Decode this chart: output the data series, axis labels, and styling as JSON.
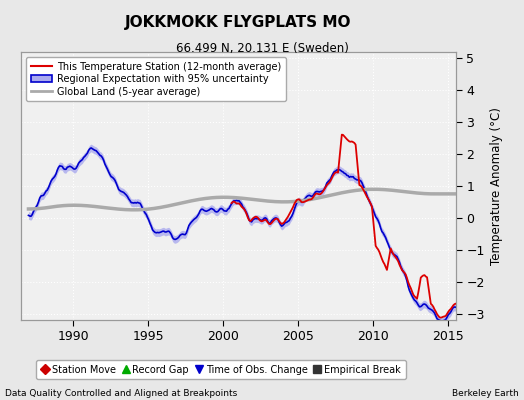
{
  "title": "JOKKMOKK FLYGPLATS MO",
  "subtitle": "66.499 N, 20.131 E (Sweden)",
  "xlabel_left": "Data Quality Controlled and Aligned at Breakpoints",
  "xlabel_right": "Berkeley Earth",
  "ylabel": "Temperature Anomaly (°C)",
  "xlim": [
    1986.5,
    2015.5
  ],
  "ylim": [
    -3.2,
    5.2
  ],
  "yticks": [
    -3,
    -2,
    -1,
    0,
    1,
    2,
    3,
    4,
    5
  ],
  "xticks": [
    1990,
    1995,
    2000,
    2005,
    2010,
    2015
  ],
  "bg_color": "#e8e8e8",
  "plot_bg_color": "#f0f0f0",
  "grid_color": "#ffffff",
  "red_color": "#dd0000",
  "blue_color": "#0000cc",
  "blue_fill_color": "#aaaaee",
  "gray_color": "#aaaaaa",
  "legend1_label": "This Temperature Station (12-month average)",
  "legend2_label": "Regional Expectation with 95% uncertainty",
  "legend3_label": "Global Land (5-year average)",
  "marker_labels": [
    "Station Move",
    "Record Gap",
    "Time of Obs. Change",
    "Empirical Break"
  ],
  "marker_colors": [
    "#cc0000",
    "#00aa00",
    "#0000cc",
    "#333333"
  ],
  "marker_styles": [
    "D",
    "^",
    "v",
    "s"
  ],
  "seed": 12345
}
